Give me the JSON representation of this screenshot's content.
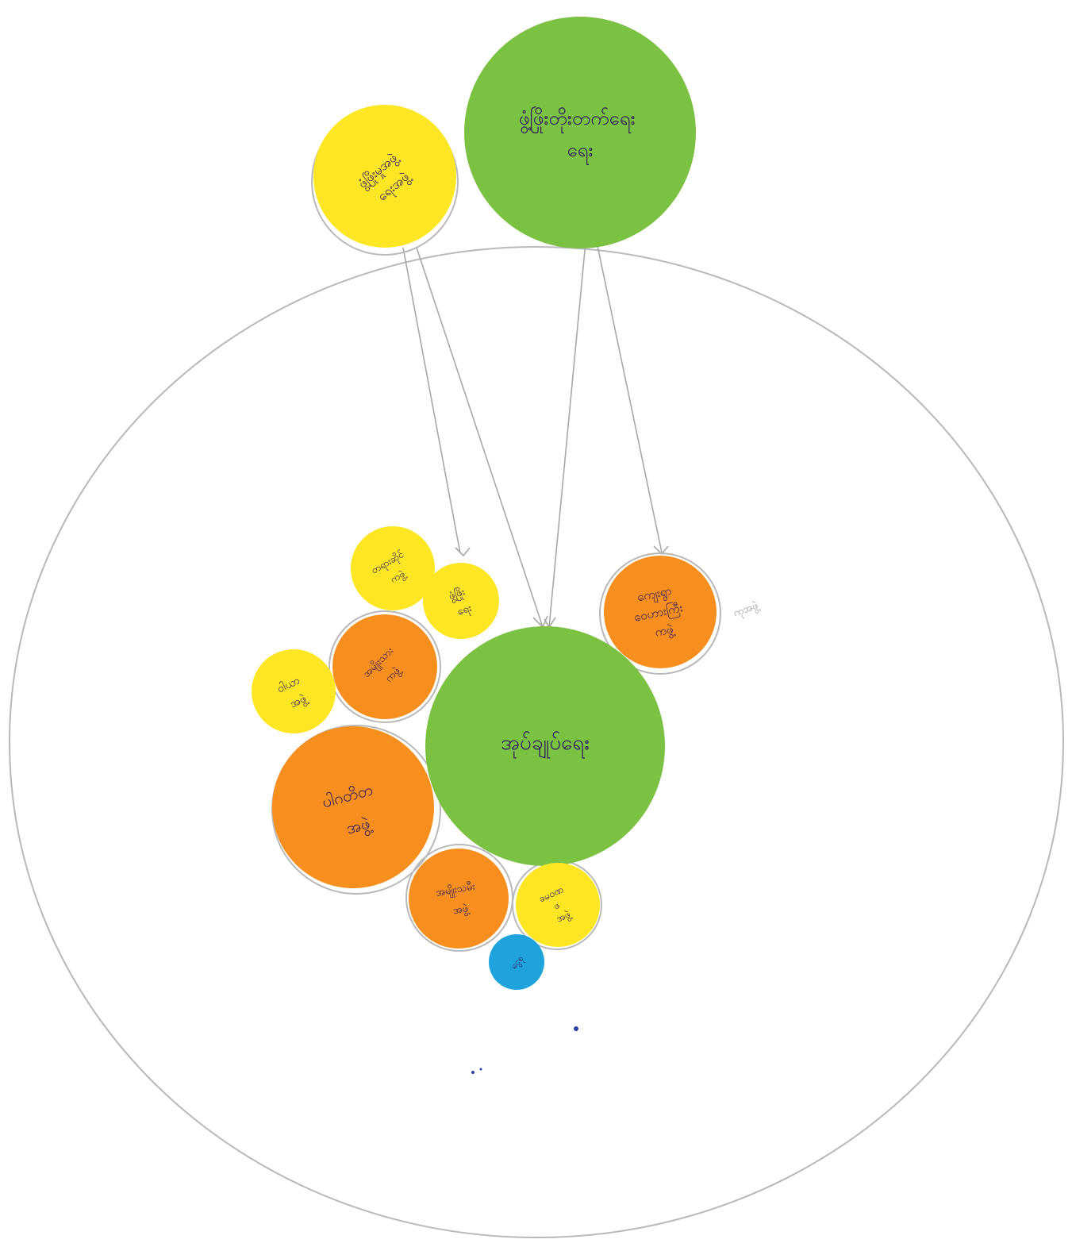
{
  "colors": {
    "green": "#7bc142",
    "yellow": "#fde725",
    "orange": "#f78f1e",
    "blue": "#1fa3dc",
    "outline": "#b9b9b9",
    "label_ink": "#2c1c5a"
  },
  "outer_area": {
    "label": ""
  },
  "nodes": [
    {
      "id": "n-green-top",
      "color": "green",
      "label_lines": [
        "ဖွံ့ဖြိုးတိုးတက်ရေး",
        "ရေး"
      ]
    },
    {
      "id": "n-yellow-top",
      "color": "yellow",
      "label_lines": [
        "ဖွံ့ဖြိုးမှုအဖွဲ့",
        "ရေးအဖွဲ့"
      ]
    },
    {
      "id": "n-green-center",
      "color": "green",
      "label_lines": [
        "အုပ်ချုပ်ရေး"
      ]
    },
    {
      "id": "n-orange-right",
      "color": "orange",
      "label_lines": [
        "ကျေးရွာ",
        "ဝေဟားကြီး",
        "ကဖွဲ့"
      ]
    },
    {
      "id": "n-yellow-small-top-left",
      "color": "yellow",
      "label_lines": [
        "တရားဆိုင်",
        "ကဖွဲ့"
      ]
    },
    {
      "id": "n-yellow-small-mid",
      "color": "yellow",
      "label_lines": [
        "ဖွံ့ဖြိုး",
        "ရေး"
      ]
    },
    {
      "id": "n-orange-mid-left",
      "color": "orange",
      "label_lines": [
        "အမျိုးသား",
        "ကဖွဲ့"
      ]
    },
    {
      "id": "n-yellow-left",
      "color": "yellow",
      "label_lines": [
        "ဝါယာ",
        "အဖွဲ့"
      ]
    },
    {
      "id": "n-orange-large-left",
      "color": "orange",
      "label_lines": [
        "ပါဂတိတ",
        "အဖွဲ့"
      ]
    },
    {
      "id": "n-orange-bottom",
      "color": "orange",
      "label_lines": [
        "အမျိုးသမီး",
        "အဖွဲ့"
      ]
    },
    {
      "id": "n-yellow-bottom-right",
      "color": "yellow",
      "label_lines": [
        "ခမဝဏ",
        "ဖ",
        "အဖွဲ့"
      ]
    },
    {
      "id": "n-blue-bottom",
      "color": "blue",
      "label_lines": [
        "ငွေစု"
      ]
    }
  ],
  "side_note": "ကုအဖွဲ့",
  "connections": [
    {
      "from": "n-yellow-top",
      "to": "n-yellow-small-mid"
    },
    {
      "from": "n-yellow-top",
      "to": "n-green-center"
    },
    {
      "from": "n-green-top",
      "to": "n-green-center"
    },
    {
      "from": "n-green-top",
      "to": "n-orange-right"
    }
  ]
}
